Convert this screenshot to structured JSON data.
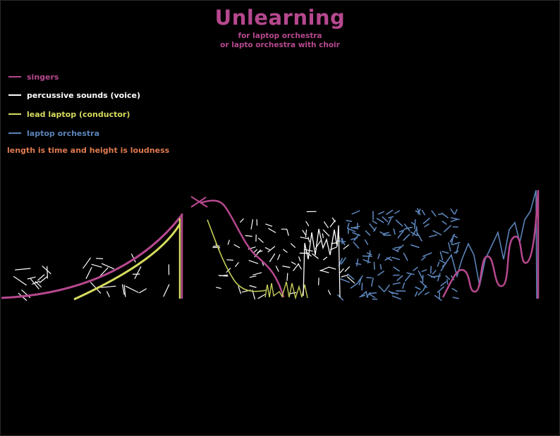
{
  "title": "Unlearning",
  "subtitle_1": "for laptop orchestra",
  "subtitle_2": "or lapto orchestra with choir",
  "legend": [
    {
      "label": "singers",
      "color": "#b6488e"
    },
    {
      "label": "percussive sounds (voice)",
      "color": "#ffffff"
    },
    {
      "label": "lead laptop (conductor)",
      "color": "#d6dc5e"
    },
    {
      "label": "laptop orchestra",
      "color": "#5a83b8"
    }
  ],
  "note": "length is time and height is loudness",
  "colors": {
    "background": "#000000",
    "title": "#b6488e",
    "note": "#e07a50"
  }
}
